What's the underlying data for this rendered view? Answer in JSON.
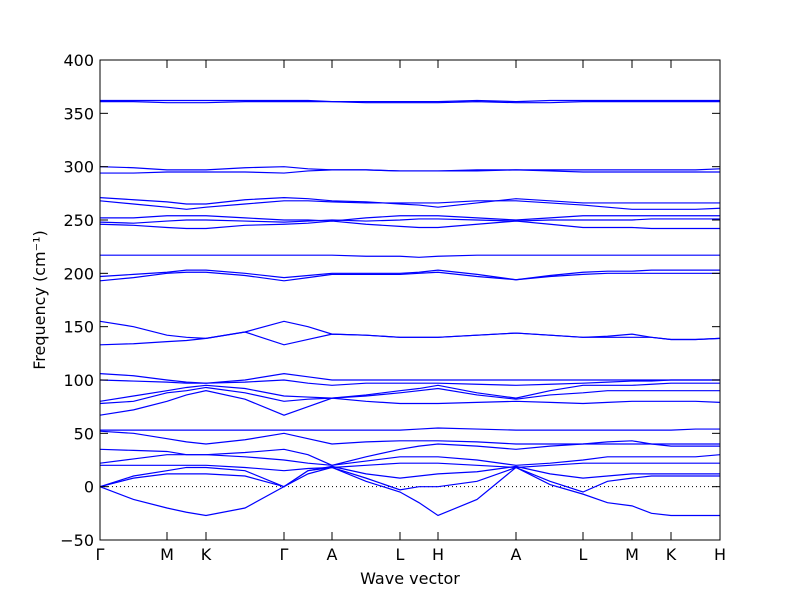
{
  "chart_data": {
    "type": "line",
    "xlabel": "Wave vector",
    "ylabel": "Frequency (cm⁻¹)",
    "xlim": [
      0,
      6.2
    ],
    "ylim": [
      -50,
      400
    ],
    "yticks": [
      {
        "value": -50,
        "label": "−50"
      },
      0,
      50,
      100,
      150,
      200,
      250,
      300,
      350,
      400
    ],
    "xticks": [
      {
        "value": 0,
        "label": "Γ"
      },
      {
        "value": 0.67,
        "label": "M"
      },
      {
        "value": 1.06,
        "label": "K"
      },
      {
        "value": 1.84,
        "label": "Γ"
      },
      {
        "value": 2.32,
        "label": "A"
      },
      {
        "value": 3.0,
        "label": "L"
      },
      {
        "value": 3.38,
        "label": "H"
      },
      {
        "value": 4.16,
        "label": "A"
      },
      {
        "value": 4.83,
        "label": "L"
      },
      {
        "value": 5.32,
        "label": "M"
      },
      {
        "value": 5.71,
        "label": "K"
      },
      {
        "value": 6.2,
        "label": "H"
      }
    ],
    "hlines": [
      0
    ],
    "x": [
      0,
      0.335,
      0.67,
      0.865,
      1.06,
      1.45,
      1.84,
      2.08,
      2.32,
      2.66,
      3.0,
      3.19,
      3.38,
      3.77,
      4.16,
      4.5,
      4.83,
      5.075,
      5.32,
      5.515,
      5.71,
      5.955,
      6.2
    ],
    "series": [
      {
        "color": "#0000ff",
        "values": [
          362,
          362,
          362,
          362,
          362,
          362,
          362,
          362,
          361,
          361,
          361,
          361,
          361,
          362,
          361,
          362,
          362,
          362,
          362,
          362,
          362,
          362,
          362
        ]
      },
      {
        "color": "#0000ff",
        "values": [
          361,
          361,
          360,
          360,
          360,
          361,
          361,
          361,
          361,
          360,
          360,
          360,
          360,
          361,
          360,
          360,
          361,
          361,
          361,
          361,
          361,
          361,
          361
        ]
      },
      {
        "color": "#0000ff",
        "values": [
          300,
          299,
          297,
          297,
          297,
          299,
          300,
          298,
          297,
          297,
          296,
          296,
          296,
          297,
          297,
          297,
          297,
          297,
          297,
          297,
          297,
          297,
          298
        ]
      },
      {
        "color": "#0000ff",
        "values": [
          294,
          294,
          295,
          295,
          295,
          295,
          294,
          296,
          297,
          297,
          296,
          296,
          296,
          296,
          297,
          296,
          295,
          295,
          295,
          295,
          295,
          295,
          295
        ]
      },
      {
        "color": "#0000ff",
        "values": [
          271,
          269,
          267,
          265,
          265,
          269,
          271,
          270,
          268,
          267,
          265,
          264,
          262,
          266,
          270,
          268,
          266,
          266,
          266,
          266,
          266,
          266,
          266
        ]
      },
      {
        "color": "#0000ff",
        "values": [
          268,
          265,
          262,
          260,
          262,
          265,
          268,
          268,
          267,
          266,
          266,
          266,
          266,
          268,
          268,
          266,
          264,
          262,
          260,
          260,
          260,
          260,
          261
        ]
      },
      {
        "color": "#0000ff",
        "values": [
          252,
          252,
          254,
          254,
          254,
          252,
          250,
          250,
          249,
          252,
          254,
          254,
          254,
          252,
          250,
          252,
          254,
          254,
          254,
          254,
          254,
          254,
          254
        ]
      },
      {
        "color": "#0000ff",
        "values": [
          248,
          247,
          249,
          250,
          250,
          249,
          248,
          249,
          250,
          249,
          250,
          251,
          251,
          250,
          249,
          250,
          250,
          250,
          250,
          251,
          251,
          251,
          251
        ]
      },
      {
        "color": "#0000ff",
        "values": [
          246,
          245,
          243,
          242,
          242,
          245,
          246,
          247,
          249,
          246,
          244,
          243,
          243,
          246,
          249,
          246,
          243,
          243,
          243,
          242,
          242,
          242,
          242
        ]
      },
      {
        "color": "#0000ff",
        "values": [
          217,
          217,
          217,
          217,
          217,
          217,
          217,
          217,
          217,
          216,
          216,
          215,
          216,
          217,
          217,
          217,
          217,
          217,
          217,
          217,
          217,
          217,
          217
        ]
      },
      {
        "color": "#0000ff",
        "values": [
          197,
          199,
          201,
          203,
          203,
          200,
          196,
          198,
          200,
          200,
          200,
          201,
          203,
          199,
          194,
          198,
          201,
          202,
          202,
          203,
          203,
          203,
          203
        ]
      },
      {
        "color": "#0000ff",
        "values": [
          193,
          196,
          200,
          201,
          201,
          198,
          193,
          196,
          199,
          199,
          199,
          200,
          201,
          197,
          194,
          197,
          199,
          200,
          200,
          200,
          200,
          200,
          200
        ]
      },
      {
        "color": "#0000ff",
        "values": [
          155,
          150,
          142,
          140,
          139,
          145,
          155,
          150,
          143,
          142,
          140,
          140,
          140,
          142,
          144,
          142,
          140,
          141,
          143,
          140,
          138,
          138,
          139
        ]
      },
      {
        "color": "#0000ff",
        "values": [
          133,
          134,
          136,
          137,
          139,
          145,
          133,
          138,
          143,
          142,
          140,
          140,
          140,
          142,
          144,
          142,
          140,
          140,
          140,
          140,
          138,
          138,
          139
        ]
      },
      {
        "color": "#0000ff",
        "values": [
          106,
          104,
          100,
          98,
          97,
          100,
          106,
          103,
          100,
          100,
          100,
          100,
          100,
          100,
          100,
          100,
          100,
          100,
          100,
          100,
          100,
          100,
          100
        ]
      },
      {
        "color": "#0000ff",
        "values": [
          100,
          99,
          98,
          97,
          97,
          98,
          100,
          97,
          95,
          97,
          97,
          97,
          97,
          96,
          95,
          96,
          97,
          98,
          99,
          99,
          100,
          100,
          100
        ]
      },
      {
        "color": "#0000ff",
        "values": [
          80,
          85,
          90,
          93,
          95,
          92,
          85,
          84,
          83,
          86,
          90,
          92,
          95,
          88,
          83,
          90,
          95,
          95,
          95,
          96,
          97,
          97,
          97
        ]
      },
      {
        "color": "#0000ff",
        "values": [
          78,
          80,
          88,
          90,
          93,
          88,
          80,
          82,
          83,
          85,
          88,
          90,
          92,
          86,
          82,
          86,
          88,
          90,
          90,
          90,
          90,
          90,
          90
        ]
      },
      {
        "color": "#0000ff",
        "values": [
          67,
          72,
          80,
          86,
          90,
          82,
          67,
          75,
          83,
          80,
          78,
          78,
          78,
          79,
          80,
          79,
          78,
          79,
          80,
          80,
          80,
          80,
          79
        ]
      },
      {
        "color": "#0000ff",
        "values": [
          53,
          53,
          53,
          53,
          53,
          53,
          53,
          53,
          53,
          53,
          53,
          54,
          55,
          54,
          53,
          53,
          53,
          53,
          53,
          53,
          53,
          54,
          54
        ]
      },
      {
        "color": "#0000ff",
        "values": [
          52,
          50,
          45,
          42,
          40,
          44,
          50,
          45,
          40,
          42,
          43,
          43,
          43,
          42,
          40,
          40,
          40,
          40,
          40,
          40,
          40,
          40,
          40
        ]
      },
      {
        "color": "#0000ff",
        "values": [
          35,
          34,
          33,
          30,
          30,
          32,
          35,
          30,
          20,
          28,
          35,
          38,
          40,
          38,
          35,
          38,
          40,
          42,
          43,
          40,
          38,
          38,
          38
        ]
      },
      {
        "color": "#0000ff",
        "values": [
          22,
          26,
          30,
          30,
          30,
          28,
          25,
          22,
          20,
          24,
          28,
          28,
          28,
          25,
          20,
          22,
          25,
          28,
          28,
          28,
          28,
          28,
          30
        ]
      },
      {
        "color": "#0000ff",
        "values": [
          20,
          20,
          20,
          20,
          20,
          18,
          15,
          17,
          18,
          20,
          22,
          22,
          22,
          20,
          18,
          20,
          22,
          22,
          22,
          22,
          22,
          22,
          22
        ]
      },
      {
        "color": "#0000ff",
        "values": [
          0,
          8,
          12,
          12,
          12,
          10,
          0,
          12,
          18,
          8,
          -3,
          0,
          0,
          5,
          18,
          5,
          -5,
          5,
          8,
          10,
          10,
          10,
          10
        ]
      },
      {
        "color": "#0000ff",
        "values": [
          0,
          10,
          15,
          18,
          18,
          15,
          0,
          15,
          19,
          12,
          8,
          10,
          12,
          14,
          19,
          12,
          8,
          10,
          12,
          12,
          12,
          12,
          12
        ]
      },
      {
        "color": "#0000ff",
        "values": [
          0,
          -12,
          -20,
          -24,
          -27,
          -20,
          0,
          15,
          18,
          5,
          -5,
          -15,
          -27,
          -12,
          18,
          2,
          -7,
          -15,
          -18,
          -25,
          -27,
          -27,
          -27
        ]
      }
    ]
  }
}
